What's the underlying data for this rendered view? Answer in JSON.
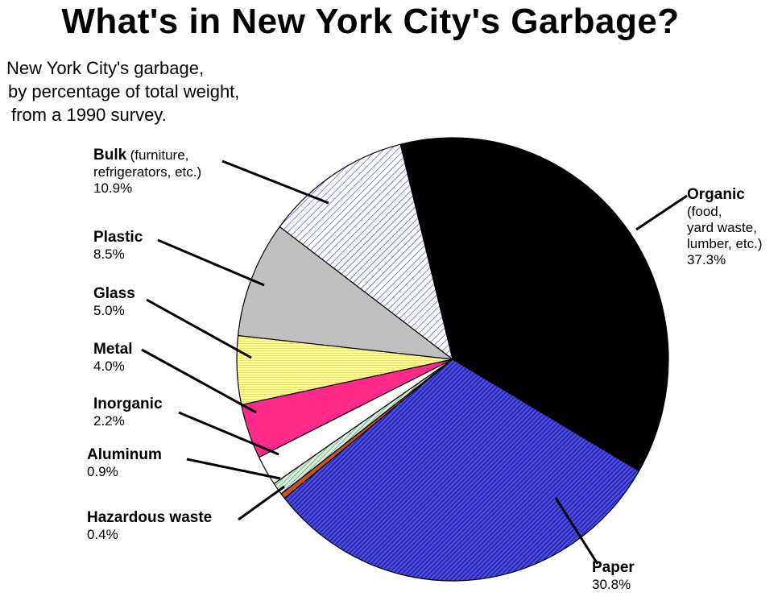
{
  "title": "What's in New York City's Garbage?",
  "subtitle": [
    "New York City's garbage,",
    "by percentage of total weight,",
    "from a 1990 survey."
  ],
  "chart_data": {
    "type": "pie",
    "title": "What's in New York City's Garbage?",
    "subtitle": "New York City's garbage, by percentage of total weight, from a 1990 survey.",
    "start": "clockwise from just left of top",
    "slices": [
      {
        "key": "organic",
        "name": "Organic",
        "note": [
          "(food,",
          "yard waste,",
          "lumber, etc.)"
        ],
        "pct_label": "37.3%",
        "value": 37.3,
        "fill": "#000000",
        "pattern": "solid"
      },
      {
        "key": "paper",
        "name": "Paper",
        "note": [],
        "pct_label": "30.8%",
        "value": 30.8,
        "fill": "#3a3acc",
        "pattern": "dense-hatch"
      },
      {
        "key": "hazardous",
        "name": "Hazardous waste",
        "note": [],
        "pct_label": "0.4%",
        "value": 0.4,
        "fill": "#c8502a",
        "pattern": "solid"
      },
      {
        "key": "aluminum",
        "name": "Aluminum",
        "note": [],
        "pct_label": "0.9%",
        "value": 0.9,
        "fill": "#bfe3c8",
        "pattern": "hatch"
      },
      {
        "key": "inorganic",
        "name": "Inorganic",
        "note": [],
        "pct_label": "2.2%",
        "value": 2.2,
        "fill": "#ffffff",
        "pattern": "solid"
      },
      {
        "key": "metal",
        "name": "Metal",
        "note": [],
        "pct_label": "4.0%",
        "value": 4.0,
        "fill": "#ff2a8a",
        "pattern": "solid"
      },
      {
        "key": "glass",
        "name": "Glass",
        "note": [],
        "pct_label": "5.0%",
        "value": 5.0,
        "fill": "#ffff99",
        "pattern": "horizontal-lines"
      },
      {
        "key": "plastic",
        "name": "Plastic",
        "note": [],
        "pct_label": "8.5%",
        "value": 8.5,
        "fill": "#c0c0c0",
        "pattern": "solid"
      },
      {
        "key": "bulk",
        "name": "Bulk",
        "note": [
          "(furniture,",
          "refrigerators, etc.)"
        ],
        "pct_label": "10.9%",
        "value": 10.9,
        "fill": "#ffffff",
        "pattern": "blue-hatch"
      }
    ]
  }
}
